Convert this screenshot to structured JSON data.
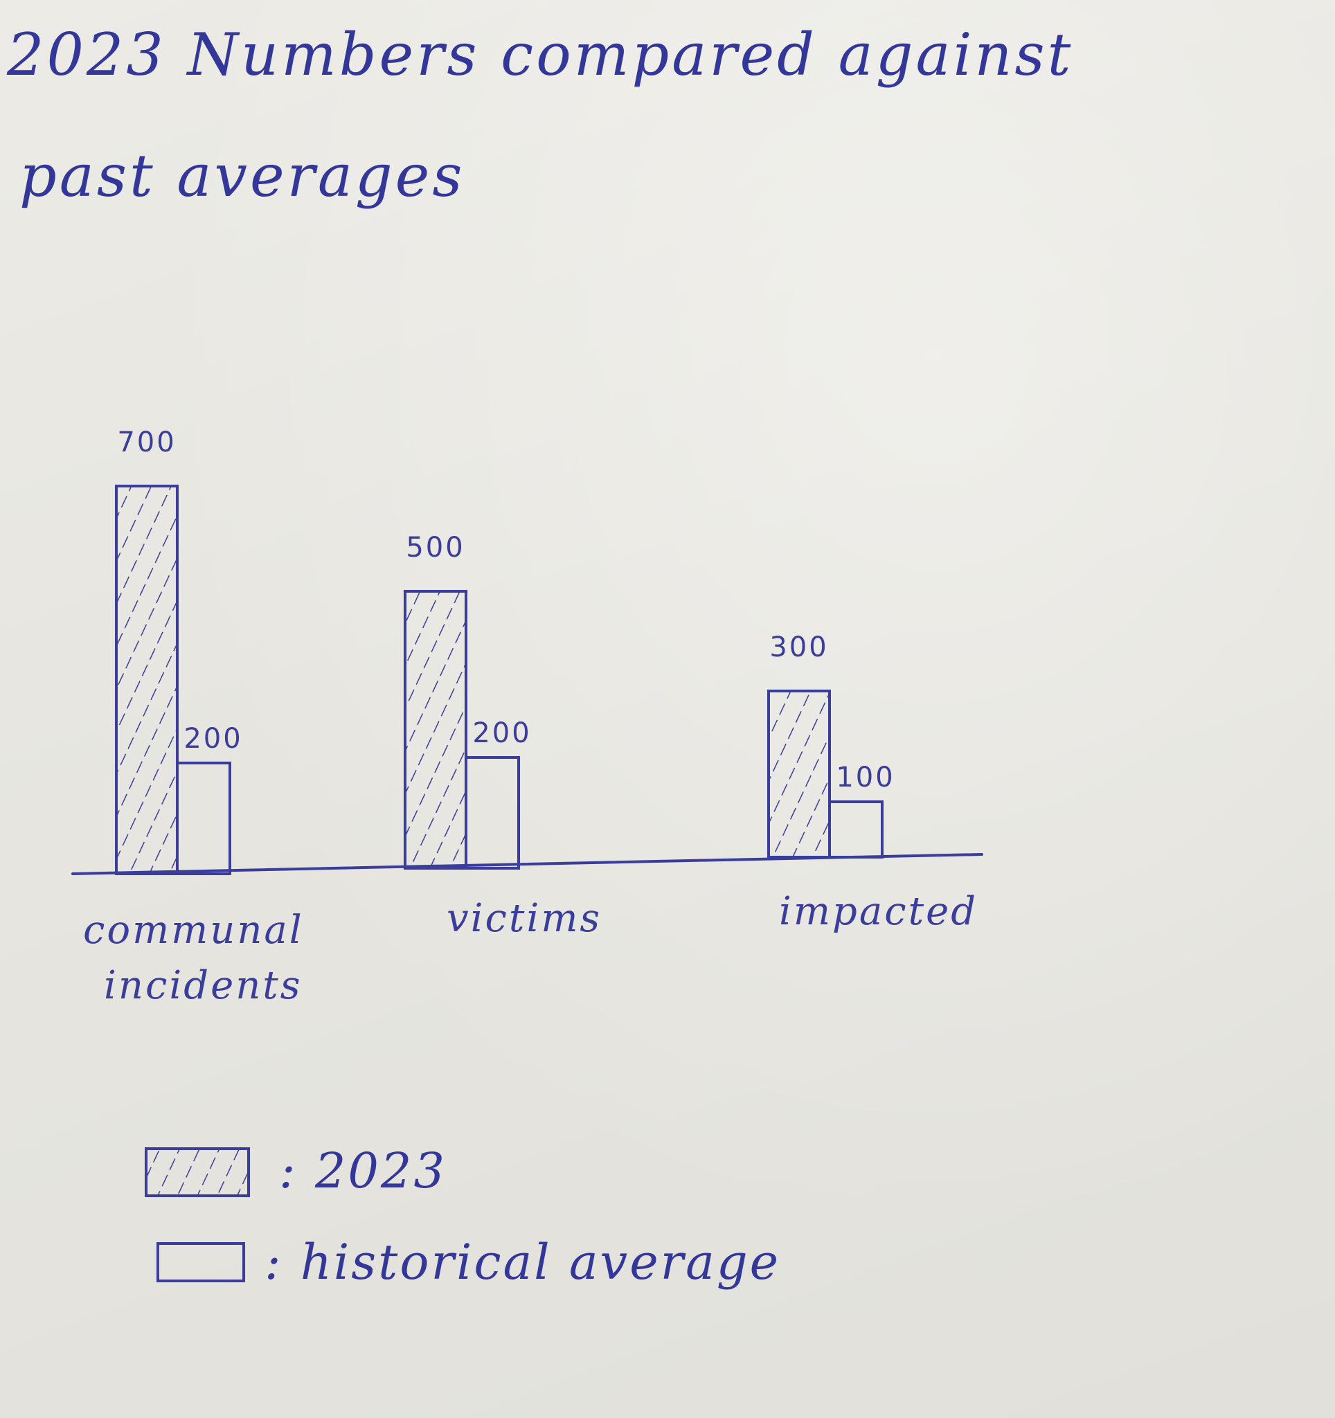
{
  "chart_data": {
    "type": "bar",
    "title_lines": [
      "2023 Numbers compared against",
      "past averages"
    ],
    "categories": [
      "communal incidents",
      "victims",
      "impacted"
    ],
    "category_label_lines": [
      [
        "communal",
        "incidents"
      ],
      [
        "victims"
      ],
      [
        "impacted"
      ]
    ],
    "series": [
      {
        "name": "2023",
        "values": [
          700,
          500,
          300
        ],
        "hatched": true
      },
      {
        "name": "historical average",
        "values": [
          200,
          200,
          100
        ],
        "hatched": false
      }
    ],
    "data_labels": [
      [
        "700",
        "500",
        "300"
      ],
      [
        "200",
        "200",
        "100"
      ]
    ],
    "legend": [
      {
        "key": "2023",
        "text": ": 2023"
      },
      {
        "key": "historical average",
        "text": ": historical average"
      }
    ],
    "legend_placement": "bottom-left",
    "grid": false,
    "ylim": [
      0,
      700
    ],
    "ink_color": "#3a3d9c"
  }
}
